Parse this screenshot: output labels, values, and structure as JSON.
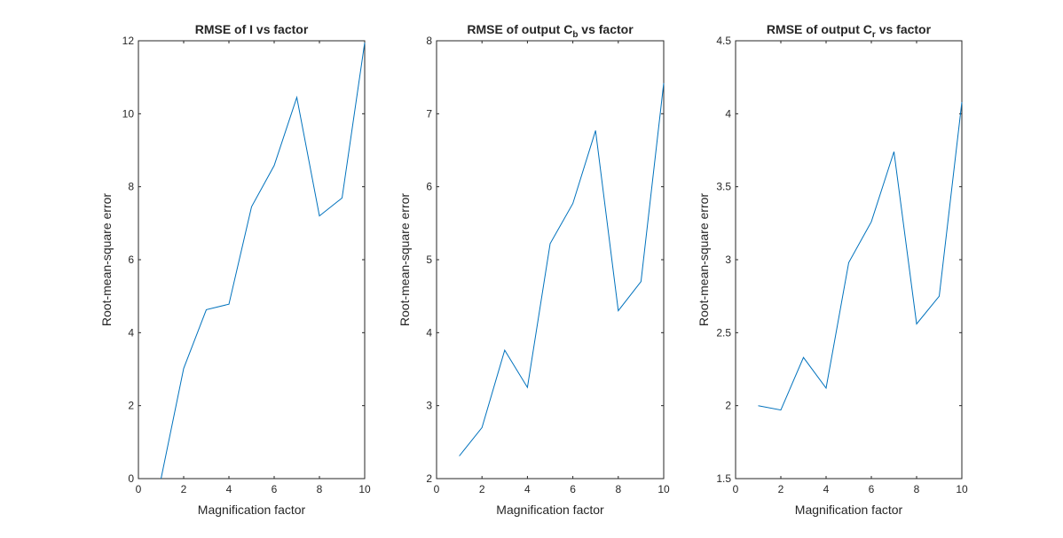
{
  "chart_data": [
    {
      "type": "line",
      "title": "RMSE of I vs factor",
      "title_parts": [
        {
          "text": "RMSE of I vs factor"
        }
      ],
      "xlabel": "Magnification factor",
      "ylabel": "Root-mean-square error",
      "xlim": [
        0,
        10
      ],
      "ylim": [
        0,
        12
      ],
      "xticks": [
        "0",
        "2",
        "4",
        "6",
        "8",
        "10"
      ],
      "yticks": [
        "0",
        "2",
        "4",
        "6",
        "8",
        "10",
        "12"
      ],
      "grid": false,
      "line_color": "#0072bd",
      "series": [
        {
          "x": [
            1,
            2,
            3,
            4,
            5,
            6,
            7,
            8,
            9,
            10
          ],
          "y": [
            0.0,
            3.02,
            4.63,
            4.78,
            7.45,
            8.58,
            10.45,
            7.2,
            7.69,
            11.95
          ]
        }
      ]
    },
    {
      "type": "line",
      "title": "RMSE of output Cb vs factor",
      "title_parts": [
        {
          "text": "RMSE of output C"
        },
        {
          "text": "b",
          "sub": true
        },
        {
          "text": " vs factor"
        }
      ],
      "xlabel": "Magnification factor",
      "ylabel": "Root-mean-square error",
      "xlim": [
        0,
        10
      ],
      "ylim": [
        2,
        8
      ],
      "xticks": [
        "0",
        "2",
        "4",
        "6",
        "8",
        "10"
      ],
      "yticks": [
        "2",
        "3",
        "4",
        "5",
        "6",
        "7",
        "8"
      ],
      "grid": false,
      "line_color": "#0072bd",
      "series": [
        {
          "x": [
            1,
            2,
            3,
            4,
            5,
            6,
            7,
            8,
            9,
            10
          ],
          "y": [
            2.31,
            2.7,
            3.76,
            3.25,
            5.22,
            5.77,
            6.77,
            4.3,
            4.7,
            7.42
          ]
        }
      ]
    },
    {
      "type": "line",
      "title": "RMSE of output Cr vs factor",
      "title_parts": [
        {
          "text": "RMSE of output C"
        },
        {
          "text": "r",
          "sub": true
        },
        {
          "text": " vs factor"
        }
      ],
      "xlabel": "Magnification factor",
      "ylabel": "Root-mean-square error",
      "xlim": [
        0,
        10
      ],
      "ylim": [
        1.5,
        4.5
      ],
      "xticks": [
        "0",
        "2",
        "4",
        "6",
        "8",
        "10"
      ],
      "yticks": [
        "1.5",
        "2",
        "2.5",
        "3",
        "3.5",
        "4",
        "4.5"
      ],
      "grid": false,
      "line_color": "#0072bd",
      "series": [
        {
          "x": [
            1,
            2,
            3,
            4,
            5,
            6,
            7,
            8,
            9,
            10
          ],
          "y": [
            2.0,
            1.97,
            2.33,
            2.12,
            2.98,
            3.26,
            3.74,
            2.56,
            2.75,
            4.08
          ]
        }
      ]
    }
  ]
}
